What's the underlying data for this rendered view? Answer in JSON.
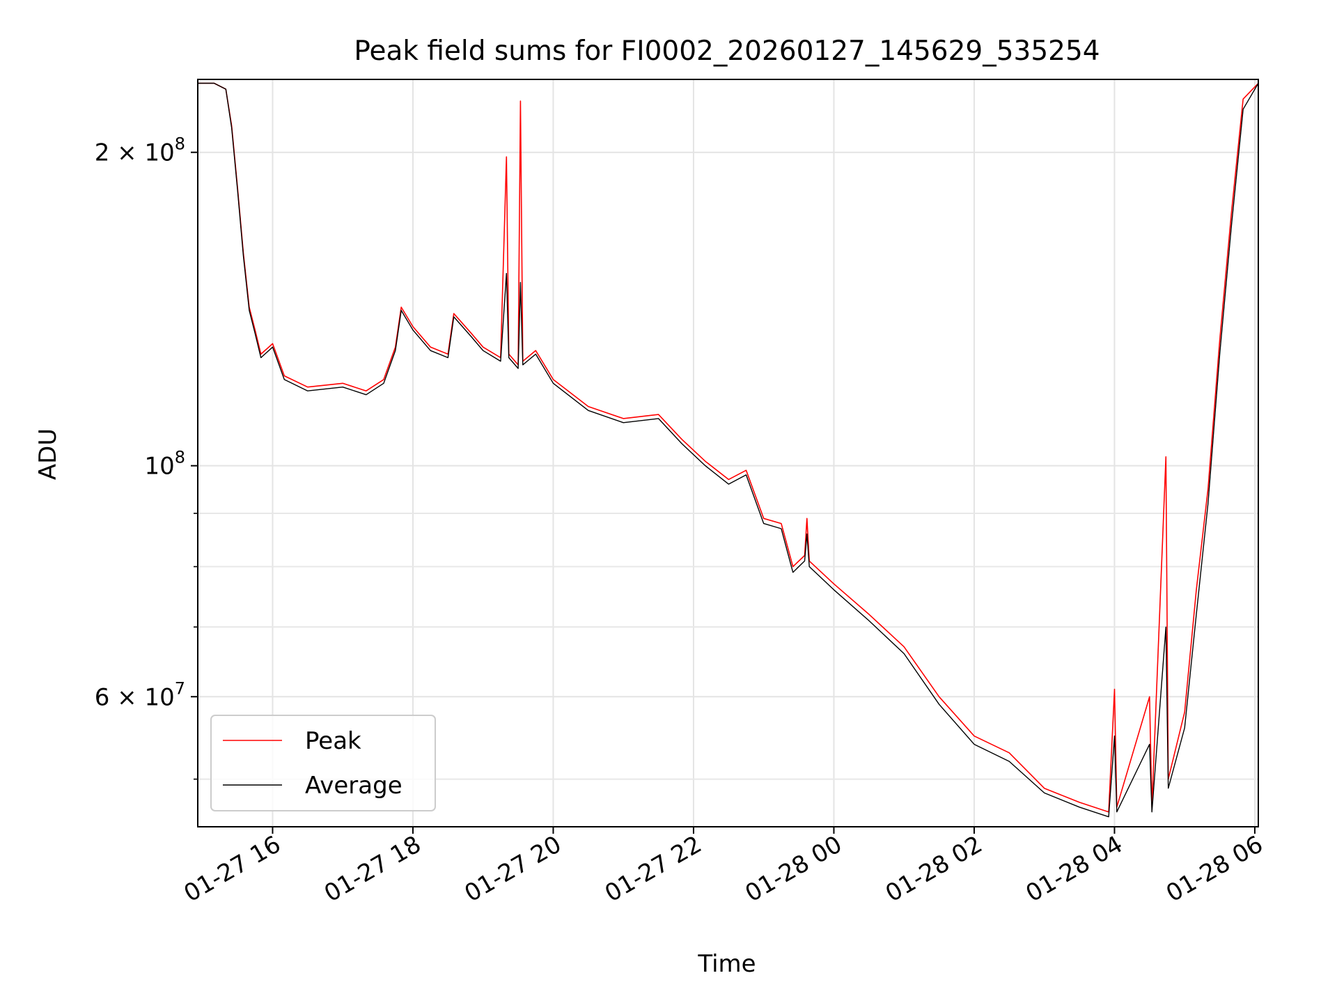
{
  "chart_data": {
    "type": "line",
    "title": "Peak field sums for FI0002_20260127_145629_535254",
    "xlabel": "Time",
    "ylabel": "ADU",
    "y_scale": "log",
    "ylim": [
      45000000,
      235000000
    ],
    "xlim": [
      "2026-01-27 14:56",
      "2026-01-28 06:03"
    ],
    "x_ticks": [
      "2026-01-27 16:00",
      "2026-01-27 18:00",
      "2026-01-27 20:00",
      "2026-01-27 22:00",
      "2026-01-28 00:00",
      "2026-01-28 02:00",
      "2026-01-28 04:00",
      "2026-01-28 06:00"
    ],
    "x_tick_labels": [
      "01-27 16",
      "01-27 18",
      "01-27 20",
      "01-27 22",
      "01-28 00",
      "01-28 02",
      "01-28 04",
      "01-28 06"
    ],
    "y_major_ticks": [
      200000000,
      100000000,
      60000000
    ],
    "y_major_tick_labels": [
      {
        "mantissa": "2",
        "times": "×",
        "base": "10",
        "exp": "8"
      },
      {
        "mantissa": "",
        "times": "",
        "base": "10",
        "exp": "8"
      },
      {
        "mantissa": "6",
        "times": "×",
        "base": "10",
        "exp": "7"
      }
    ],
    "y_minor_ticks": [
      50000000,
      70000000,
      80000000,
      90000000
    ],
    "grid": true,
    "legend_position": "lower-left",
    "series": [
      {
        "name": "Peak",
        "color": "#ff0000",
        "points": [
          [
            "2026-01-27 14:56",
            233000000
          ],
          [
            "2026-01-27 15:10",
            233000000
          ],
          [
            "2026-01-27 15:20",
            230000000
          ],
          [
            "2026-01-27 15:25",
            212000000
          ],
          [
            "2026-01-27 15:30",
            185000000
          ],
          [
            "2026-01-27 15:35",
            160000000
          ],
          [
            "2026-01-27 15:40",
            142000000
          ],
          [
            "2026-01-27 15:45",
            135000000
          ],
          [
            "2026-01-27 15:50",
            128000000
          ],
          [
            "2026-01-27 16:00",
            131000000
          ],
          [
            "2026-01-27 16:10",
            122000000
          ],
          [
            "2026-01-27 16:30",
            119000000
          ],
          [
            "2026-01-27 17:00",
            120000000
          ],
          [
            "2026-01-27 17:20",
            118000000
          ],
          [
            "2026-01-27 17:35",
            121000000
          ],
          [
            "2026-01-27 17:45",
            130000000
          ],
          [
            "2026-01-27 17:50",
            142000000
          ],
          [
            "2026-01-27 18:00",
            136000000
          ],
          [
            "2026-01-27 18:15",
            130000000
          ],
          [
            "2026-01-27 18:30",
            128000000
          ],
          [
            "2026-01-27 18:35",
            140000000
          ],
          [
            "2026-01-27 18:50",
            134000000
          ],
          [
            "2026-01-27 19:00",
            130000000
          ],
          [
            "2026-01-27 19:15",
            127000000
          ],
          [
            "2026-01-27 19:20",
            198000000
          ],
          [
            "2026-01-27 19:22",
            128000000
          ],
          [
            "2026-01-27 19:30",
            125000000
          ],
          [
            "2026-01-27 19:32",
            224000000
          ],
          [
            "2026-01-27 19:34",
            126000000
          ],
          [
            "2026-01-27 19:45",
            129000000
          ],
          [
            "2026-01-27 20:00",
            121000000
          ],
          [
            "2026-01-27 20:30",
            114000000
          ],
          [
            "2026-01-27 21:00",
            111000000
          ],
          [
            "2026-01-27 21:30",
            112000000
          ],
          [
            "2026-01-27 21:50",
            106000000
          ],
          [
            "2026-01-27 22:10",
            101000000
          ],
          [
            "2026-01-27 22:30",
            97000000
          ],
          [
            "2026-01-27 22:45",
            99000000
          ],
          [
            "2026-01-27 23:00",
            89000000
          ],
          [
            "2026-01-27 23:15",
            88000000
          ],
          [
            "2026-01-27 23:25",
            80000000
          ],
          [
            "2026-01-27 23:35",
            82000000
          ],
          [
            "2026-01-27 23:37",
            89000000
          ],
          [
            "2026-01-27 23:39",
            81000000
          ],
          [
            "2026-01-28 00:00",
            77000000
          ],
          [
            "2026-01-28 00:30",
            72000000
          ],
          [
            "2026-01-28 01:00",
            67000000
          ],
          [
            "2026-01-28 01:30",
            60000000
          ],
          [
            "2026-01-28 02:00",
            55000000
          ],
          [
            "2026-01-28 02:30",
            53000000
          ],
          [
            "2026-01-28 03:00",
            49000000
          ],
          [
            "2026-01-28 03:30",
            47500000
          ],
          [
            "2026-01-28 03:55",
            46500000
          ],
          [
            "2026-01-28 04:00",
            61000000
          ],
          [
            "2026-01-28 04:02",
            47000000
          ],
          [
            "2026-01-28 04:30",
            60000000
          ],
          [
            "2026-01-28 04:32",
            47000000
          ],
          [
            "2026-01-28 04:44",
            102000000
          ],
          [
            "2026-01-28 04:46",
            50000000
          ],
          [
            "2026-01-28 05:00",
            58000000
          ],
          [
            "2026-01-28 05:10",
            76000000
          ],
          [
            "2026-01-28 05:20",
            95000000
          ],
          [
            "2026-01-28 05:30",
            132000000
          ],
          [
            "2026-01-28 05:40",
            175000000
          ],
          [
            "2026-01-28 05:50",
            225000000
          ],
          [
            "2026-01-28 06:03",
            233000000
          ]
        ]
      },
      {
        "name": "Average",
        "color": "#000000",
        "points": [
          [
            "2026-01-27 14:56",
            233000000
          ],
          [
            "2026-01-27 15:10",
            233000000
          ],
          [
            "2026-01-27 15:20",
            230000000
          ],
          [
            "2026-01-27 15:25",
            211000000
          ],
          [
            "2026-01-27 15:30",
            184000000
          ],
          [
            "2026-01-27 15:35",
            159000000
          ],
          [
            "2026-01-27 15:40",
            141000000
          ],
          [
            "2026-01-27 15:45",
            134000000
          ],
          [
            "2026-01-27 15:50",
            127000000
          ],
          [
            "2026-01-27 16:00",
            130000000
          ],
          [
            "2026-01-27 16:10",
            121000000
          ],
          [
            "2026-01-27 16:30",
            118000000
          ],
          [
            "2026-01-27 17:00",
            119000000
          ],
          [
            "2026-01-27 17:20",
            117000000
          ],
          [
            "2026-01-27 17:35",
            120000000
          ],
          [
            "2026-01-27 17:45",
            129000000
          ],
          [
            "2026-01-27 17:50",
            141000000
          ],
          [
            "2026-01-27 18:00",
            135000000
          ],
          [
            "2026-01-27 18:15",
            129000000
          ],
          [
            "2026-01-27 18:30",
            127000000
          ],
          [
            "2026-01-27 18:35",
            139000000
          ],
          [
            "2026-01-27 18:50",
            133000000
          ],
          [
            "2026-01-27 19:00",
            129000000
          ],
          [
            "2026-01-27 19:15",
            126000000
          ],
          [
            "2026-01-27 19:20",
            153000000
          ],
          [
            "2026-01-27 19:22",
            127000000
          ],
          [
            "2026-01-27 19:30",
            124000000
          ],
          [
            "2026-01-27 19:32",
            150000000
          ],
          [
            "2026-01-27 19:34",
            125000000
          ],
          [
            "2026-01-27 19:45",
            128000000
          ],
          [
            "2026-01-27 20:00",
            120000000
          ],
          [
            "2026-01-27 20:30",
            113000000
          ],
          [
            "2026-01-27 21:00",
            110000000
          ],
          [
            "2026-01-27 21:30",
            111000000
          ],
          [
            "2026-01-27 21:50",
            105000000
          ],
          [
            "2026-01-27 22:10",
            100000000
          ],
          [
            "2026-01-27 22:30",
            96000000
          ],
          [
            "2026-01-27 22:45",
            98000000
          ],
          [
            "2026-01-27 23:00",
            88000000
          ],
          [
            "2026-01-27 23:15",
            87000000
          ],
          [
            "2026-01-27 23:25",
            79000000
          ],
          [
            "2026-01-27 23:35",
            81000000
          ],
          [
            "2026-01-27 23:37",
            86000000
          ],
          [
            "2026-01-27 23:39",
            80000000
          ],
          [
            "2026-01-28 00:00",
            76000000
          ],
          [
            "2026-01-28 00:30",
            71000000
          ],
          [
            "2026-01-28 01:00",
            66000000
          ],
          [
            "2026-01-28 01:30",
            59000000
          ],
          [
            "2026-01-28 02:00",
            54000000
          ],
          [
            "2026-01-28 02:30",
            52000000
          ],
          [
            "2026-01-28 03:00",
            48500000
          ],
          [
            "2026-01-28 03:30",
            47000000
          ],
          [
            "2026-01-28 03:55",
            46000000
          ],
          [
            "2026-01-28 04:00",
            55000000
          ],
          [
            "2026-01-28 04:02",
            46500000
          ],
          [
            "2026-01-28 04:30",
            54000000
          ],
          [
            "2026-01-28 04:32",
            46500000
          ],
          [
            "2026-01-28 04:44",
            70000000
          ],
          [
            "2026-01-28 04:46",
            49000000
          ],
          [
            "2026-01-28 05:00",
            56000000
          ],
          [
            "2026-01-28 05:10",
            72000000
          ],
          [
            "2026-01-28 05:20",
            92000000
          ],
          [
            "2026-01-28 05:30",
            128000000
          ],
          [
            "2026-01-28 05:40",
            170000000
          ],
          [
            "2026-01-28 05:50",
            220000000
          ],
          [
            "2026-01-28 06:03",
            233000000
          ]
        ]
      }
    ]
  }
}
